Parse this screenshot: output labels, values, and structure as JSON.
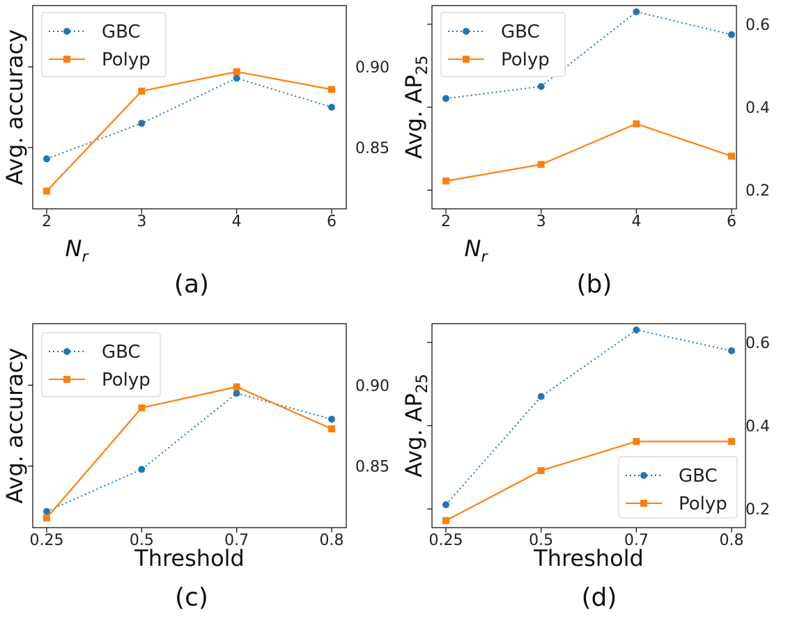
{
  "colors": {
    "gbc": "#1f77b4",
    "polyp": "#ff7f0e"
  },
  "chart_data": [
    {
      "caption": "(a)",
      "type": "line",
      "xlabel_main": "N",
      "xlabel_sub": "r",
      "ylabel_main": "Avg. accuracy",
      "ylabel_sub": "",
      "categories": [
        "2",
        "3",
        "4",
        "6"
      ],
      "ylim": [
        0.812,
        0.938
      ],
      "yticks": [
        0.85,
        0.9
      ],
      "yticks_labels": [
        "0.85",
        "0.90"
      ],
      "ytick_side": "right",
      "legend": "top-left",
      "series": [
        {
          "name": "GBC",
          "values": [
            0.843,
            0.865,
            0.893,
            0.875
          ]
        },
        {
          "name": "Polyp",
          "values": [
            0.823,
            0.885,
            0.897,
            0.886
          ]
        }
      ]
    },
    {
      "caption": "(b)",
      "type": "line",
      "xlabel_main": "N",
      "xlabel_sub": "r",
      "ylabel_main": "Avg. AP",
      "ylabel_sub": "25",
      "categories": [
        "2",
        "3",
        "4",
        "6"
      ],
      "ylim": [
        0.155,
        0.645
      ],
      "yticks": [
        0.2,
        0.4,
        0.6
      ],
      "yticks_labels": [
        "0.2",
        "0.4",
        "0.6"
      ],
      "ytick_side": "right",
      "legend": "top-left",
      "series": [
        {
          "name": "GBC",
          "values": [
            0.421,
            0.45,
            0.63,
            0.575
          ]
        },
        {
          "name": "Polyp",
          "values": [
            0.222,
            0.262,
            0.36,
            0.282
          ]
        }
      ]
    },
    {
      "caption": "(c)",
      "type": "line",
      "xlabel_main": "Threshold",
      "xlabel_sub": "",
      "ylabel_main": "Avg. accuracy",
      "ylabel_sub": "",
      "categories": [
        "0.25",
        "0.5",
        "0.7",
        "0.8"
      ],
      "ylim": [
        0.812,
        0.938
      ],
      "yticks": [
        0.85,
        0.9
      ],
      "yticks_labels": [
        "0.85",
        "0.90"
      ],
      "ytick_side": "right",
      "legend": "top-left",
      "series": [
        {
          "name": "GBC",
          "values": [
            0.822,
            0.848,
            0.895,
            0.879
          ]
        },
        {
          "name": "Polyp",
          "values": [
            0.818,
            0.886,
            0.899,
            0.873
          ]
        }
      ]
    },
    {
      "caption": "(d)",
      "type": "line",
      "xlabel_main": "Threshold",
      "xlabel_sub": "",
      "ylabel_main": "Avg. AP",
      "ylabel_sub": "25",
      "categories": [
        "0.25",
        "0.5",
        "0.7",
        "0.8"
      ],
      "ylim": [
        0.155,
        0.645
      ],
      "yticks": [
        0.2,
        0.4,
        0.6
      ],
      "yticks_labels": [
        "0.2",
        "0.4",
        "0.6"
      ],
      "ytick_side": "right",
      "legend": "bottom-right",
      "series": [
        {
          "name": "GBC",
          "values": [
            0.21,
            0.47,
            0.63,
            0.58
          ]
        },
        {
          "name": "Polyp",
          "values": [
            0.172,
            0.292,
            0.362,
            0.362
          ]
        }
      ]
    }
  ]
}
